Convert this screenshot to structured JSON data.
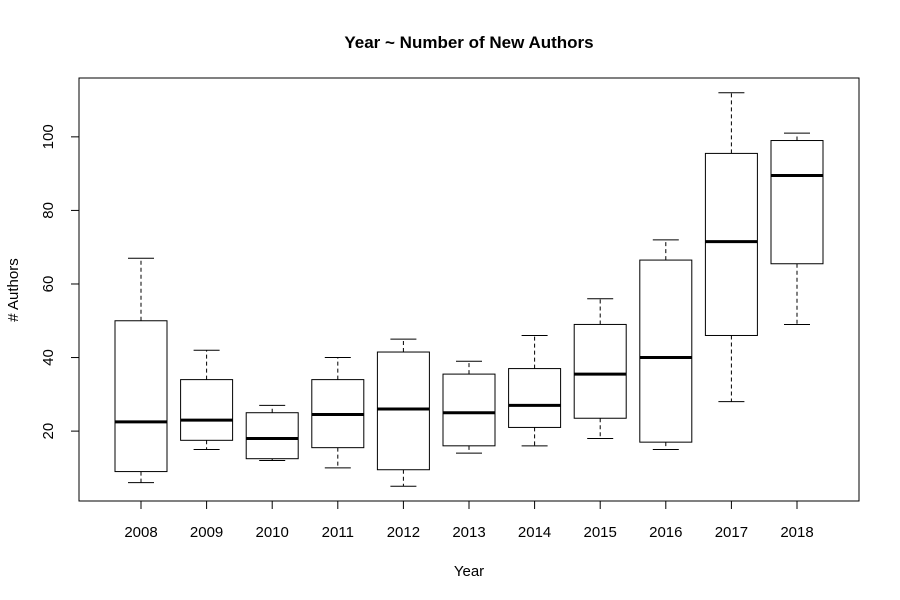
{
  "chart_data": {
    "type": "boxplot",
    "title": "Year ~ Number of New Authors",
    "xlabel": "Year",
    "ylabel": "# Authors",
    "ylim": [
      1,
      116
    ],
    "yticks": [
      20,
      40,
      60,
      80,
      100
    ],
    "grid": false,
    "categories": [
      "2008",
      "2009",
      "2010",
      "2011",
      "2012",
      "2013",
      "2014",
      "2015",
      "2016",
      "2017",
      "2018"
    ],
    "boxes": [
      {
        "min": 6,
        "q1": 9,
        "median": 22.5,
        "q3": 50,
        "max": 67
      },
      {
        "min": 15,
        "q1": 17.5,
        "median": 23,
        "q3": 34,
        "max": 42
      },
      {
        "min": 12,
        "q1": 12.5,
        "median": 18,
        "q3": 25,
        "max": 27
      },
      {
        "min": 10,
        "q1": 15.5,
        "median": 24.5,
        "q3": 34,
        "max": 40
      },
      {
        "min": 5,
        "q1": 9.5,
        "median": 26,
        "q3": 41.5,
        "max": 45
      },
      {
        "min": 14,
        "q1": 16,
        "median": 25,
        "q3": 35.5,
        "max": 39
      },
      {
        "min": 16,
        "q1": 21,
        "median": 27,
        "q3": 37,
        "max": 46
      },
      {
        "min": 18,
        "q1": 23.5,
        "median": 35.5,
        "q3": 49,
        "max": 56
      },
      {
        "min": 15,
        "q1": 17,
        "median": 40,
        "q3": 66.5,
        "max": 72
      },
      {
        "min": 28,
        "q1": 46,
        "median": 71.5,
        "q3": 95.5,
        "max": 112
      },
      {
        "min": 49,
        "q1": 65.5,
        "median": 89.5,
        "q3": 99,
        "max": 101
      }
    ]
  }
}
